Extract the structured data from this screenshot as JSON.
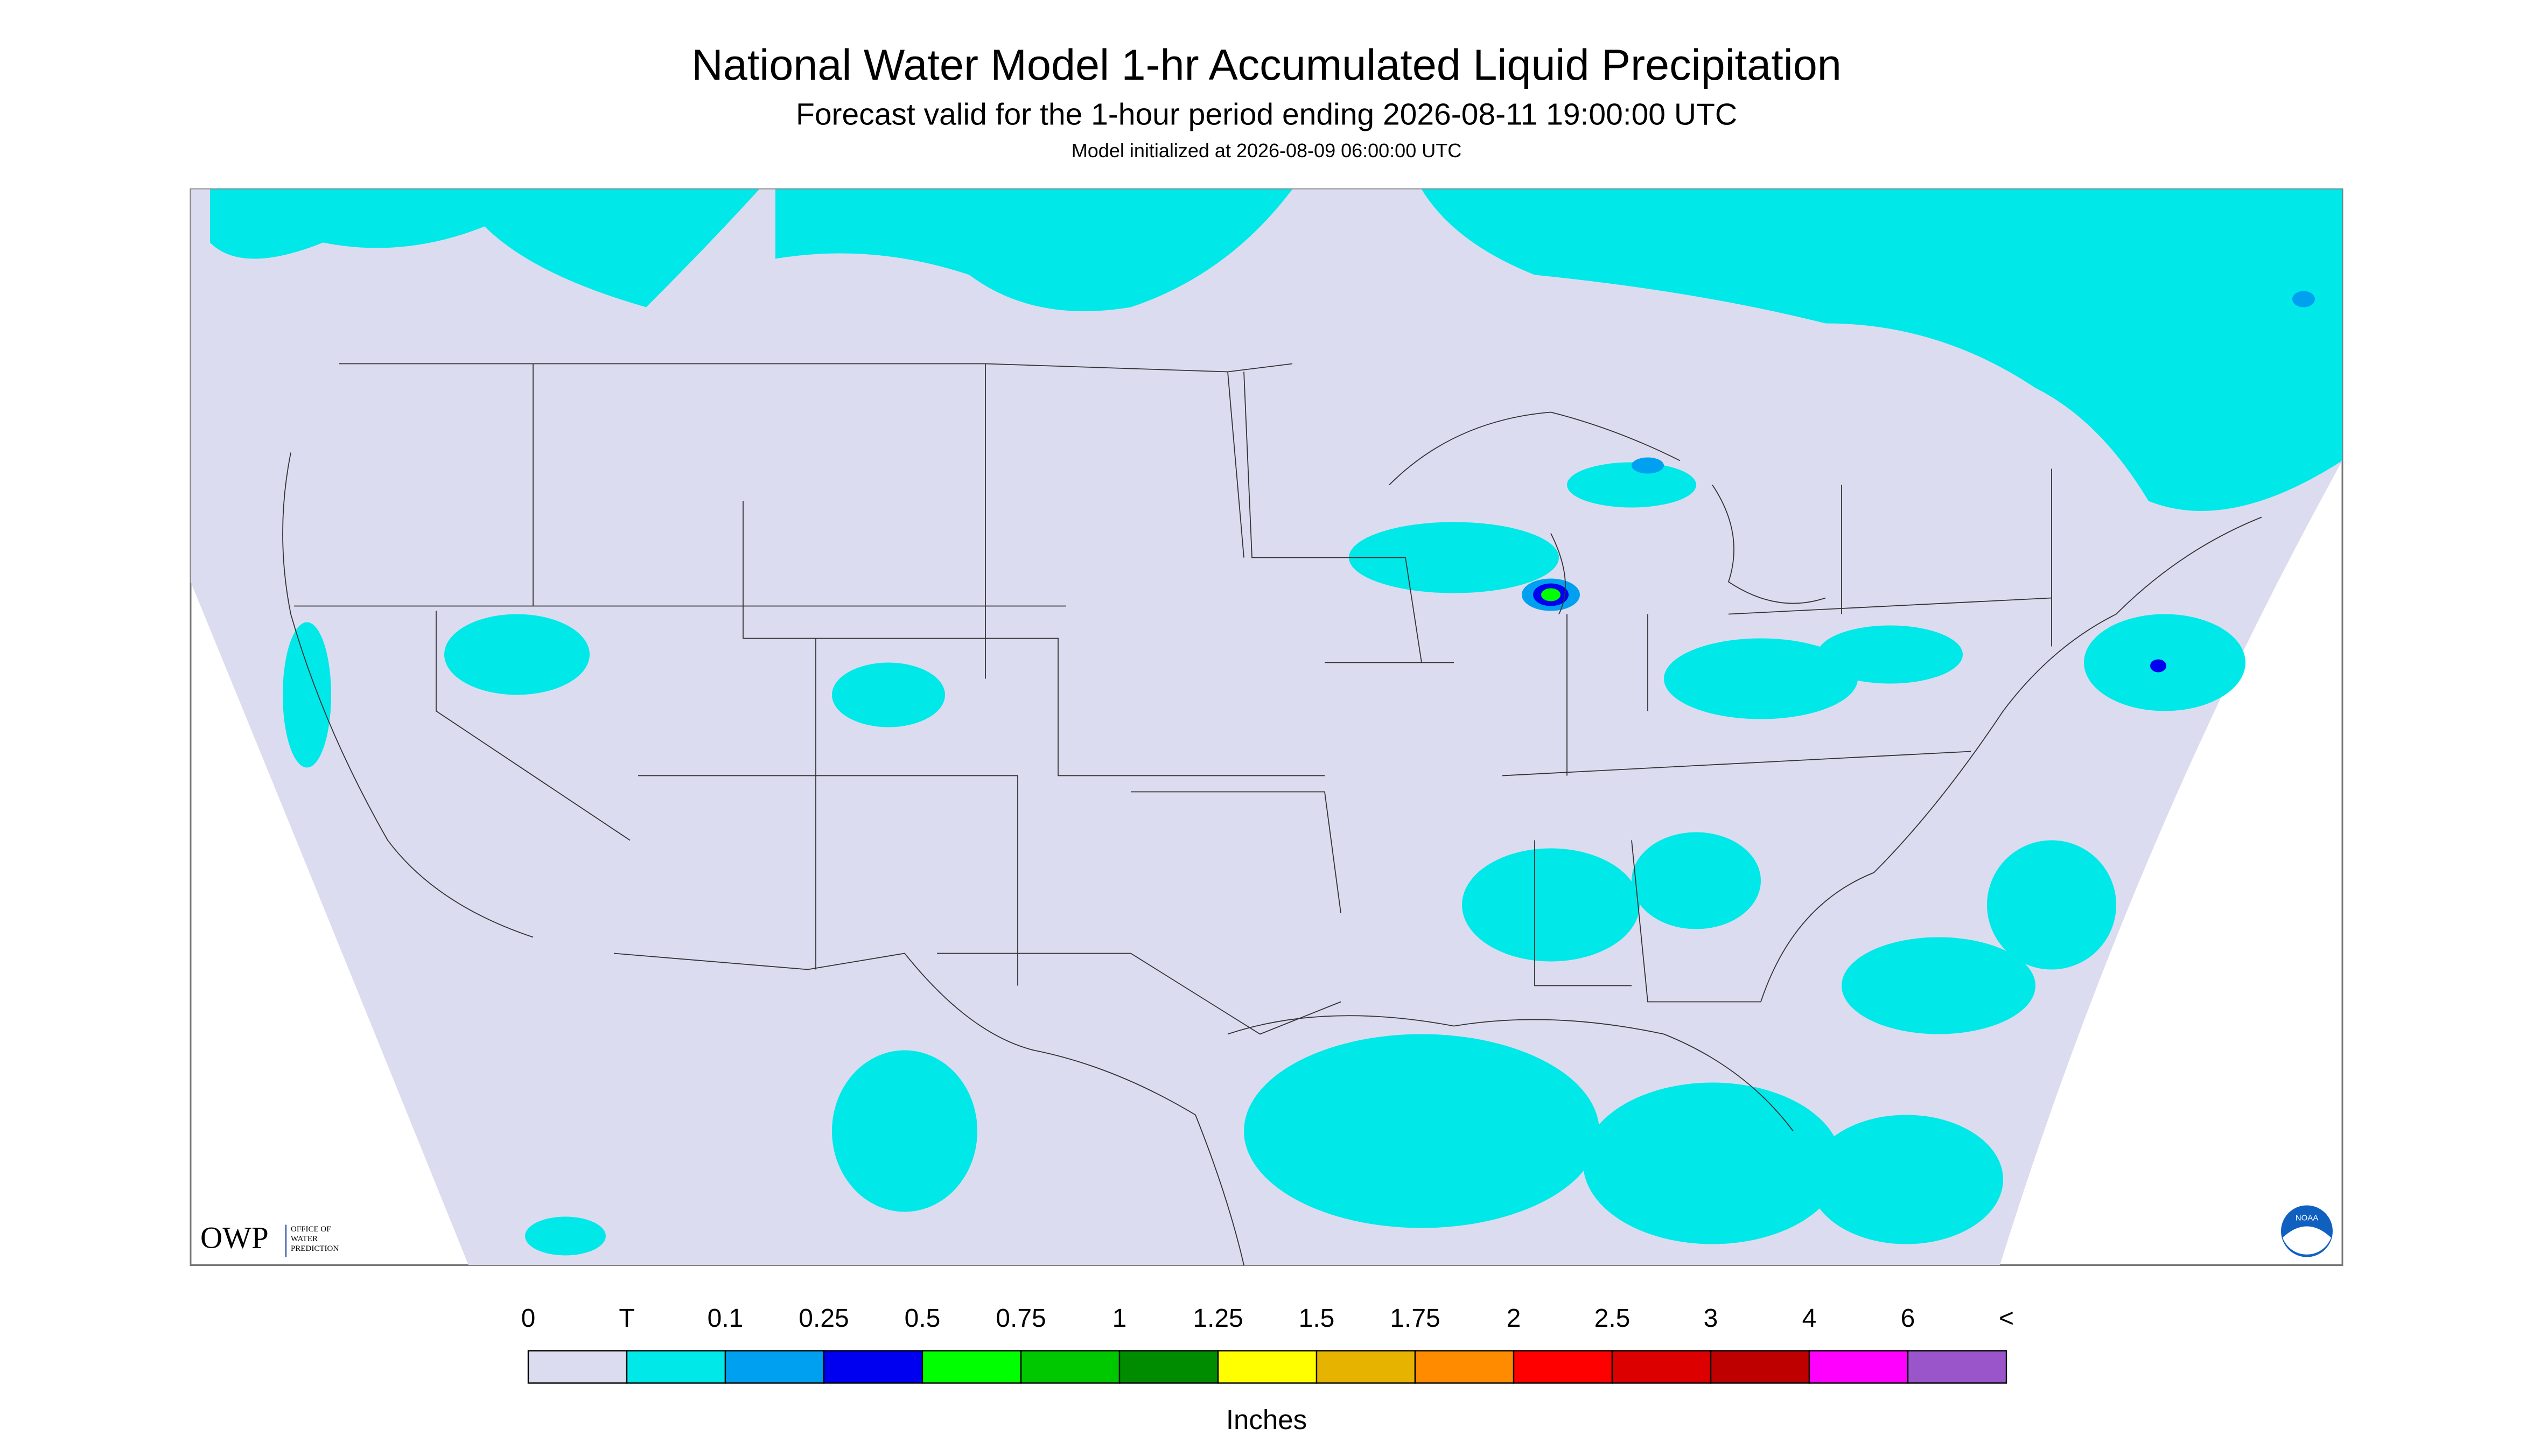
{
  "header": {
    "title": "National Water Model 1-hr Accumulated Liquid Precipitation",
    "subtitle": "Forecast valid for the 1-hour period ending 2026-08-11 19:00:00 UTC",
    "note": "Model initialized at 2026-08-09 06:00:00 UTC"
  },
  "logos": {
    "owp": "OWP",
    "owp_name": [
      "OFFICE OF",
      "WATER",
      "PREDICTION"
    ],
    "noaa": "NOAA"
  },
  "legend": {
    "labels": [
      "0",
      "T",
      "0.1",
      "0.25",
      "0.5",
      "0.75",
      "1",
      "1.25",
      "1.5",
      "1.75",
      "2",
      "2.5",
      "3",
      "4",
      "6",
      "<"
    ],
    "colors": [
      "#dcdcf0",
      "#00e8e8",
      "#00a0f0",
      "#0000f0",
      "#00ff00",
      "#00c800",
      "#008c00",
      "#ffff00",
      "#e6b400",
      "#ff8c00",
      "#ff0000",
      "#dc0000",
      "#be0000",
      "#ff00ff",
      "#9955c9"
    ],
    "unit": "Inches"
  }
}
